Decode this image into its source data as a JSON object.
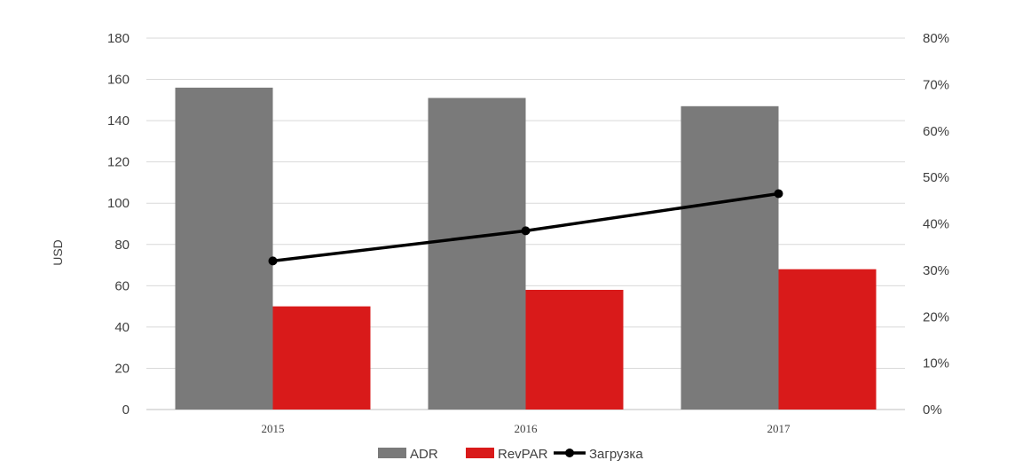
{
  "chart_data": {
    "type": "bar",
    "categories": [
      "2015",
      "2016",
      "2017"
    ],
    "series": [
      {
        "name": "ADR",
        "type": "bar",
        "axis": "left",
        "color": "#7a7a7a",
        "values": [
          156,
          151,
          147
        ]
      },
      {
        "name": "RevPAR",
        "type": "bar",
        "axis": "left",
        "color": "#d91a1a",
        "values": [
          50,
          58,
          68
        ]
      },
      {
        "name": "Загрузка",
        "type": "line",
        "axis": "right",
        "color": "#000000",
        "values": [
          0.32,
          0.385,
          0.465
        ]
      }
    ],
    "title": "",
    "xlabel": "",
    "ylabel": "USD",
    "ylim": [
      0,
      180
    ],
    "y_ticks": [
      "0",
      "20",
      "40",
      "60",
      "80",
      "100",
      "120",
      "140",
      "160",
      "180"
    ],
    "y2lim": [
      0,
      0.8
    ],
    "y2_ticks": [
      "0%",
      "10%",
      "20%",
      "30%",
      "40%",
      "50%",
      "60%",
      "70%",
      "80%"
    ],
    "grid": true,
    "legend_position": "bottom"
  }
}
